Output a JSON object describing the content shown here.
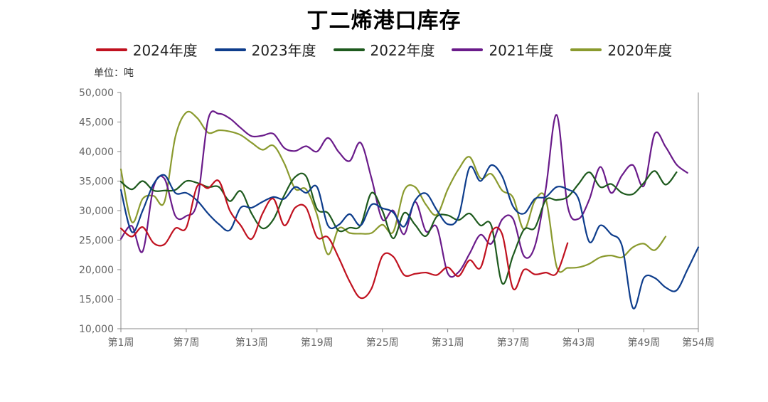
{
  "chart_data": {
    "type": "line",
    "title": "丁二烯港口库存",
    "unit_label": "单位：吨",
    "x_ticks": [
      "第1周",
      "第7周",
      "第13周",
      "第19周",
      "第25周",
      "第31周",
      "第37周",
      "第43周",
      "第49周",
      "第54周"
    ],
    "x_tick_weeks": [
      1,
      7,
      13,
      19,
      25,
      31,
      37,
      43,
      49,
      54
    ],
    "x_range": [
      1,
      54
    ],
    "y_ticks": [
      "10,000",
      "15,000",
      "20,000",
      "25,000",
      "30,000",
      "35,000",
      "40,000",
      "45,000",
      "50,000"
    ],
    "ylim": [
      10000,
      50000
    ],
    "legend_position": "top-center",
    "series": [
      {
        "name": "2024年度",
        "color": "#c0111f",
        "values": [
          27000,
          25600,
          27200,
          24500,
          24300,
          27000,
          27100,
          34100,
          33800,
          35000,
          30000,
          27500,
          25200,
          29500,
          32000,
          27500,
          30500,
          30500,
          25500,
          25500,
          22000,
          18000,
          15200,
          16800,
          22300,
          22200,
          19100,
          19300,
          19500,
          19100,
          20400,
          18900,
          21600,
          20300,
          26400,
          26000,
          16800,
          20000,
          19200,
          19500,
          19400,
          24500
        ]
      },
      {
        "name": "2023年度",
        "color": "#0e3d8c",
        "values": [
          33500,
          26400,
          30000,
          34500,
          36000,
          33000,
          33000,
          31700,
          29500,
          27700,
          26700,
          30500,
          30500,
          31500,
          32300,
          32000,
          34000,
          33000,
          34000,
          27500,
          27600,
          29400,
          27500,
          31000,
          30400,
          29700,
          27300,
          31700,
          32900,
          30100,
          27700,
          29000,
          37300,
          35000,
          37700,
          35800,
          30700,
          29500,
          32000,
          32300,
          34000,
          33600,
          32000,
          24700,
          27500,
          26000,
          24000,
          13500,
          18600,
          18600,
          17000,
          16500,
          20000,
          23800
        ]
      },
      {
        "name": "2022年度",
        "color": "#1e5a1e",
        "values": [
          34900,
          33600,
          35000,
          33400,
          33400,
          33500,
          35000,
          34700,
          34000,
          34000,
          31600,
          33300,
          29500,
          27000,
          28500,
          32600,
          35700,
          35800,
          30300,
          29600,
          26600,
          27100,
          27500,
          33000,
          30000,
          25300,
          29600,
          27600,
          25700,
          29000,
          29200,
          28400,
          29500,
          27500,
          27500,
          17700,
          22400,
          26800,
          27100,
          31800,
          31800,
          32300,
          34500,
          36500,
          34000,
          34500,
          33000,
          32800,
          34700,
          36700,
          34400,
          36500
        ]
      },
      {
        "name": "2021年度",
        "color": "#6a1b8a",
        "values": [
          25200,
          27400,
          23100,
          34000,
          35400,
          29100,
          29100,
          31400,
          45400,
          46400,
          45600,
          44000,
          42600,
          42700,
          43000,
          40600,
          40100,
          40900,
          40000,
          42300,
          39900,
          38400,
          41500,
          35500,
          28500,
          30000,
          26000,
          31500,
          26500,
          27200,
          19400,
          19600,
          22700,
          25900,
          24400,
          28500,
          28600,
          22300,
          24000,
          33700,
          46200,
          30800,
          28600,
          31900,
          37400,
          33000,
          36000,
          37700,
          34200,
          43000,
          40800,
          37800,
          36400
        ]
      },
      {
        "name": "2020年度",
        "color": "#8a9a2e",
        "values": [
          37000,
          28100,
          32000,
          32500,
          31500,
          42500,
          46600,
          45700,
          43200,
          43600,
          43400,
          42800,
          41500,
          40300,
          41000,
          38000,
          33700,
          33600,
          29300,
          22600,
          27000,
          26200,
          26100,
          26200,
          27600,
          26400,
          33400,
          34000,
          31000,
          29300,
          33600,
          37000,
          39100,
          35500,
          36200,
          33400,
          32200,
          26800,
          31700,
          32000,
          20500,
          20300,
          20400,
          21000,
          22100,
          22400,
          22100,
          23800,
          24400,
          23300,
          25600
        ]
      }
    ]
  }
}
